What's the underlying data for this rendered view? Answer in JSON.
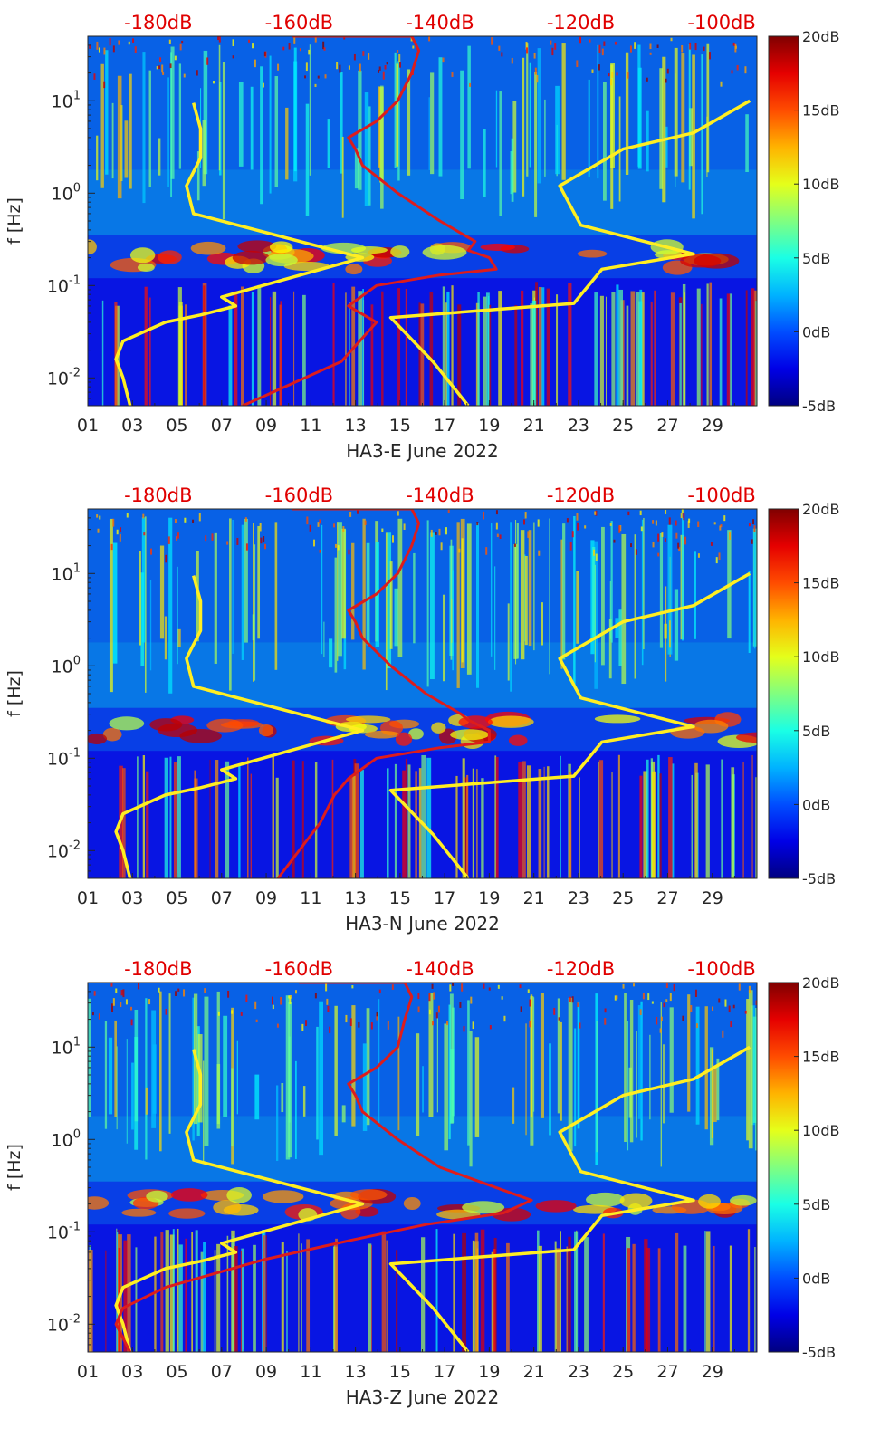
{
  "figure": {
    "colormap": "jet",
    "colors": {
      "low_curve": "#ffee22",
      "psd_curve": "#dd1c1c",
      "top_axis_text": "#e00000",
      "background_field": "#1230c8"
    }
  },
  "chart_data": [
    {
      "type": "heatmap",
      "panel": "E",
      "xlabel": "HA3-E June 2022",
      "ylabel": "f [Hz]",
      "x_ticks": [
        "01",
        "03",
        "05",
        "07",
        "09",
        "11",
        "13",
        "15",
        "17",
        "19",
        "21",
        "23",
        "25",
        "27",
        "29"
      ],
      "x_tick_values": [
        1,
        3,
        5,
        7,
        9,
        11,
        13,
        15,
        17,
        19,
        21,
        23,
        25,
        27,
        29
      ],
      "xlim": [
        1,
        31
      ],
      "y_scale": "log",
      "ylim": [
        0.005,
        50
      ],
      "y_ticks": [
        {
          "base": "10",
          "exp": "-2",
          "value": 0.01
        },
        {
          "base": "10",
          "exp": "-1",
          "value": 0.1
        },
        {
          "base": "10",
          "exp": "0",
          "value": 1
        },
        {
          "base": "10",
          "exp": "1",
          "value": 10
        }
      ],
      "top_axis_ticks": [
        "-180dB",
        "-160dB",
        "-140dB",
        "-120dB",
        "-100dB"
      ],
      "top_axis_values": [
        -180,
        -160,
        -140,
        -120,
        -100
      ],
      "top_axis_range": [
        -190,
        -95
      ],
      "colorbar": {
        "ticks": [
          "20dB",
          "15dB",
          "10dB",
          "5dB",
          "0dB",
          "-5dB"
        ],
        "values": [
          20,
          15,
          10,
          5,
          0,
          -5
        ],
        "range": [
          -5,
          20
        ]
      },
      "series": [
        {
          "role": "low_noise_model",
          "points": [
            [
              -184,
              0.005
            ],
            [
              -185,
              0.01
            ],
            [
              -186,
              0.016
            ],
            [
              -185,
              0.025
            ],
            [
              -179,
              0.04
            ],
            [
              -174,
              0.048
            ],
            [
              -169,
              0.06
            ],
            [
              -171,
              0.075
            ],
            [
              -151,
              0.2
            ],
            [
              -175,
              0.6
            ],
            [
              -176,
              1.2
            ],
            [
              -174,
              2.4
            ],
            [
              -174,
              5
            ],
            [
              -175,
              9.5
            ]
          ]
        },
        {
          "role": "high_noise_model",
          "points": [
            [
              -136,
              0.005
            ],
            [
              -141,
              0.015
            ],
            [
              -147,
              0.045
            ],
            [
              -121,
              0.064
            ],
            [
              -117,
              0.15
            ],
            [
              -104,
              0.22
            ],
            [
              -120,
              0.45
            ],
            [
              -123,
              1.2
            ],
            [
              -114,
              3
            ],
            [
              -104,
              4.5
            ],
            [
              -96,
              10
            ]
          ]
        },
        {
          "role": "psd_median",
          "points": [
            [
              -168,
              0.005
            ],
            [
              -154,
              0.015
            ],
            [
              -149,
              0.04
            ],
            [
              -153,
              0.06
            ],
            [
              -149,
              0.1
            ],
            [
              -140,
              0.13
            ],
            [
              -132,
              0.15
            ],
            [
              -133,
              0.2
            ],
            [
              -136,
              0.24
            ],
            [
              -135,
              0.3
            ],
            [
              -140,
              0.5
            ],
            [
              -146,
              1
            ],
            [
              -151,
              2
            ],
            [
              -152,
              3
            ],
            [
              -153,
              4
            ],
            [
              -149,
              6
            ],
            [
              -146,
              10
            ],
            [
              -144,
              20
            ],
            [
              -143,
              35
            ],
            [
              -144,
              50
            ],
            [
              -161,
              50
            ]
          ]
        }
      ]
    },
    {
      "type": "heatmap",
      "panel": "N",
      "xlabel": "HA3-N June 2022",
      "ylabel": "f [Hz]",
      "x_ticks": [
        "01",
        "03",
        "05",
        "07",
        "09",
        "11",
        "13",
        "15",
        "17",
        "19",
        "21",
        "23",
        "25",
        "27",
        "29"
      ],
      "x_tick_values": [
        1,
        3,
        5,
        7,
        9,
        11,
        13,
        15,
        17,
        19,
        21,
        23,
        25,
        27,
        29
      ],
      "xlim": [
        1,
        31
      ],
      "y_scale": "log",
      "ylim": [
        0.005,
        50
      ],
      "y_ticks": [
        {
          "base": "10",
          "exp": "-2",
          "value": 0.01
        },
        {
          "base": "10",
          "exp": "-1",
          "value": 0.1
        },
        {
          "base": "10",
          "exp": "0",
          "value": 1
        },
        {
          "base": "10",
          "exp": "1",
          "value": 10
        }
      ],
      "top_axis_ticks": [
        "-180dB",
        "-160dB",
        "-140dB",
        "-120dB",
        "-100dB"
      ],
      "top_axis_values": [
        -180,
        -160,
        -140,
        -120,
        -100
      ],
      "top_axis_range": [
        -190,
        -95
      ],
      "colorbar": {
        "ticks": [
          "20dB",
          "15dB",
          "10dB",
          "5dB",
          "0dB",
          "-5dB"
        ],
        "values": [
          20,
          15,
          10,
          5,
          0,
          -5
        ],
        "range": [
          -5,
          20
        ]
      },
      "series": [
        {
          "role": "low_noise_model",
          "points": [
            [
              -184,
              0.005
            ],
            [
              -185,
              0.01
            ],
            [
              -186,
              0.016
            ],
            [
              -185,
              0.025
            ],
            [
              -179,
              0.04
            ],
            [
              -174,
              0.048
            ],
            [
              -169,
              0.06
            ],
            [
              -171,
              0.075
            ],
            [
              -151,
              0.2
            ],
            [
              -175,
              0.6
            ],
            [
              -176,
              1.2
            ],
            [
              -174,
              2.4
            ],
            [
              -174,
              5
            ],
            [
              -175,
              9.5
            ]
          ]
        },
        {
          "role": "high_noise_model",
          "points": [
            [
              -136,
              0.005
            ],
            [
              -141,
              0.015
            ],
            [
              -147,
              0.045
            ],
            [
              -121,
              0.064
            ],
            [
              -117,
              0.15
            ],
            [
              -104,
              0.22
            ],
            [
              -120,
              0.45
            ],
            [
              -123,
              1.2
            ],
            [
              -114,
              3
            ],
            [
              -104,
              4.5
            ],
            [
              -96,
              10
            ]
          ]
        },
        {
          "role": "psd_median",
          "points": [
            [
              -163,
              0.005
            ],
            [
              -157,
              0.02
            ],
            [
              -155,
              0.04
            ],
            [
              -153,
              0.06
            ],
            [
              -149,
              0.1
            ],
            [
              -140,
              0.13
            ],
            [
              -133,
              0.15
            ],
            [
              -133,
              0.2
            ],
            [
              -136,
              0.26
            ],
            [
              -137,
              0.3
            ],
            [
              -142,
              0.5
            ],
            [
              -147,
              1
            ],
            [
              -151,
              2
            ],
            [
              -152,
              3
            ],
            [
              -153,
              4
            ],
            [
              -149,
              6
            ],
            [
              -146,
              10
            ],
            [
              -144,
              20
            ],
            [
              -143,
              35
            ],
            [
              -144,
              50
            ],
            [
              -161,
              50
            ]
          ]
        }
      ]
    },
    {
      "type": "heatmap",
      "panel": "Z",
      "xlabel": "HA3-Z June 2022",
      "ylabel": "f [Hz]",
      "x_ticks": [
        "01",
        "03",
        "05",
        "07",
        "09",
        "11",
        "13",
        "15",
        "17",
        "19",
        "21",
        "23",
        "25",
        "27",
        "29"
      ],
      "x_tick_values": [
        1,
        3,
        5,
        7,
        9,
        11,
        13,
        15,
        17,
        19,
        21,
        23,
        25,
        27,
        29
      ],
      "xlim": [
        1,
        31
      ],
      "y_scale": "log",
      "ylim": [
        0.005,
        50
      ],
      "y_ticks": [
        {
          "base": "10",
          "exp": "-2",
          "value": 0.01
        },
        {
          "base": "10",
          "exp": "-1",
          "value": 0.1
        },
        {
          "base": "10",
          "exp": "0",
          "value": 1
        },
        {
          "base": "10",
          "exp": "1",
          "value": 10
        }
      ],
      "top_axis_ticks": [
        "-180dB",
        "-160dB",
        "-140dB",
        "-120dB",
        "-100dB"
      ],
      "top_axis_values": [
        -180,
        -160,
        -140,
        -120,
        -100
      ],
      "top_axis_range": [
        -190,
        -95
      ],
      "colorbar": {
        "ticks": [
          "20dB",
          "15dB",
          "10dB",
          "5dB",
          "0dB",
          "-5dB"
        ],
        "values": [
          20,
          15,
          10,
          5,
          0,
          -5
        ],
        "range": [
          -5,
          20
        ]
      },
      "series": [
        {
          "role": "low_noise_model",
          "points": [
            [
              -184,
              0.005
            ],
            [
              -185,
              0.01
            ],
            [
              -186,
              0.016
            ],
            [
              -185,
              0.025
            ],
            [
              -179,
              0.04
            ],
            [
              -174,
              0.048
            ],
            [
              -169,
              0.06
            ],
            [
              -171,
              0.075
            ],
            [
              -151,
              0.2
            ],
            [
              -175,
              0.6
            ],
            [
              -176,
              1.2
            ],
            [
              -174,
              2.4
            ],
            [
              -174,
              5
            ],
            [
              -175,
              9.5
            ]
          ]
        },
        {
          "role": "high_noise_model",
          "points": [
            [
              -136,
              0.005
            ],
            [
              -141,
              0.015
            ],
            [
              -147,
              0.045
            ],
            [
              -121,
              0.064
            ],
            [
              -117,
              0.15
            ],
            [
              -104,
              0.22
            ],
            [
              -120,
              0.45
            ],
            [
              -123,
              1.2
            ],
            [
              -114,
              3
            ],
            [
              -104,
              4.5
            ],
            [
              -96,
              10
            ]
          ]
        },
        {
          "role": "psd_median",
          "points": [
            [
              -184,
              0.005
            ],
            [
              -186,
              0.01
            ],
            [
              -185,
              0.015
            ],
            [
              -179,
              0.025
            ],
            [
              -165,
              0.05
            ],
            [
              -153,
              0.08
            ],
            [
              -142,
              0.12
            ],
            [
              -131,
              0.16
            ],
            [
              -127,
              0.22
            ],
            [
              -132,
              0.3
            ],
            [
              -140,
              0.5
            ],
            [
              -146,
              1
            ],
            [
              -151,
              2
            ],
            [
              -152,
              3
            ],
            [
              -153,
              4
            ],
            [
              -149,
              6
            ],
            [
              -146,
              10
            ],
            [
              -145,
              20
            ],
            [
              -144,
              35
            ],
            [
              -145,
              50
            ],
            [
              -160,
              50
            ]
          ]
        }
      ]
    }
  ]
}
